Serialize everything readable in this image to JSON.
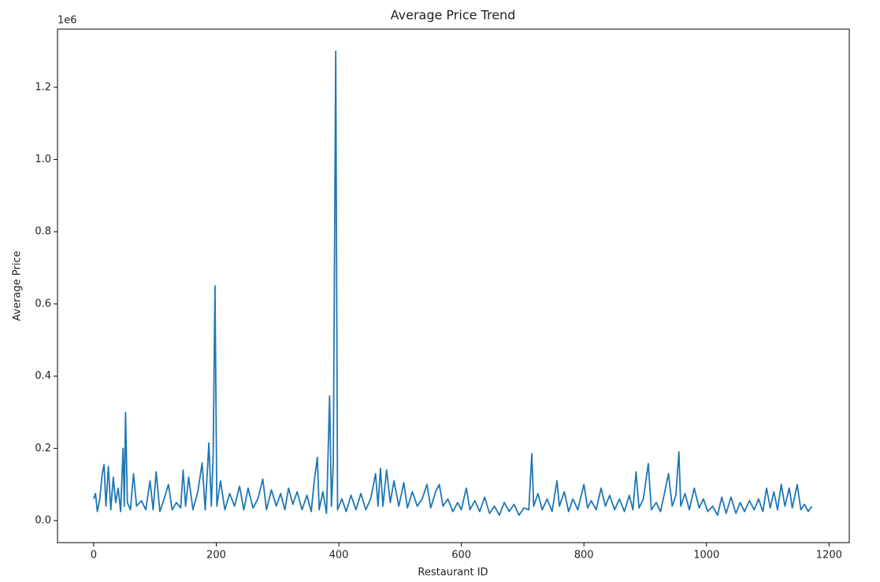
{
  "chart_data": {
    "type": "line",
    "title": "Average Price Trend",
    "x_label": "Restaurant ID",
    "y_label": "Average Price",
    "y_offset_label": "1e6",
    "x": [
      0,
      3,
      6,
      10,
      14,
      17,
      20,
      24,
      28,
      32,
      36,
      40,
      44,
      48,
      50,
      52,
      55,
      60,
      65,
      70,
      78,
      85,
      92,
      97,
      102,
      108,
      115,
      122,
      128,
      135,
      142,
      146,
      150,
      155,
      162,
      170,
      177,
      182,
      188,
      192,
      195,
      198,
      201,
      207,
      214,
      222,
      230,
      238,
      245,
      252,
      260,
      268,
      276,
      282,
      290,
      298,
      305,
      312,
      318,
      325,
      332,
      340,
      348,
      355,
      360,
      365,
      368,
      374,
      380,
      385,
      388,
      391,
      395,
      398,
      405,
      412,
      420,
      428,
      436,
      444,
      452,
      460,
      464,
      468,
      472,
      478,
      484,
      490,
      498,
      506,
      512,
      520,
      528,
      536,
      544,
      550,
      558,
      564,
      570,
      578,
      586,
      594,
      600,
      608,
      614,
      622,
      630,
      638,
      646,
      654,
      662,
      670,
      678,
      686,
      694,
      702,
      710,
      715,
      718,
      725,
      732,
      740,
      748,
      756,
      760,
      768,
      775,
      782,
      790,
      800,
      806,
      812,
      820,
      828,
      835,
      842,
      850,
      858,
      866,
      874,
      880,
      885,
      890,
      897,
      905,
      910,
      918,
      925,
      932,
      938,
      944,
      950,
      955,
      958,
      965,
      972,
      980,
      988,
      995,
      1002,
      1010,
      1018,
      1025,
      1032,
      1040,
      1048,
      1055,
      1062,
      1070,
      1078,
      1085,
      1092,
      1098,
      1104,
      1110,
      1116,
      1122,
      1128,
      1135,
      1140,
      1148,
      1154,
      1160,
      1166,
      1172
    ],
    "series": [
      {
        "name": "Average Price",
        "color": "#1f77b4",
        "values": [
          60000,
          75000,
          25000,
          60000,
          130000,
          155000,
          40000,
          150000,
          30000,
          120000,
          50000,
          90000,
          25000,
          200000,
          40000,
          300000,
          50000,
          30000,
          130000,
          40000,
          55000,
          30000,
          110000,
          30000,
          135000,
          25000,
          60000,
          100000,
          30000,
          50000,
          35000,
          140000,
          40000,
          120000,
          30000,
          80000,
          160000,
          30000,
          215000,
          40000,
          180000,
          650000,
          40000,
          110000,
          30000,
          75000,
          40000,
          95000,
          30000,
          90000,
          35000,
          60000,
          115000,
          30000,
          85000,
          40000,
          75000,
          30000,
          90000,
          45000,
          80000,
          30000,
          70000,
          25000,
          110000,
          175000,
          30000,
          80000,
          20000,
          345000,
          40000,
          155000,
          1300000,
          30000,
          60000,
          25000,
          70000,
          30000,
          75000,
          30000,
          60000,
          130000,
          40000,
          145000,
          40000,
          140000,
          50000,
          110000,
          40000,
          105000,
          35000,
          80000,
          40000,
          60000,
          100000,
          35000,
          80000,
          100000,
          40000,
          60000,
          25000,
          50000,
          30000,
          90000,
          30000,
          55000,
          25000,
          65000,
          20000,
          40000,
          15000,
          50000,
          25000,
          45000,
          15000,
          35000,
          30000,
          185000,
          40000,
          75000,
          30000,
          60000,
          25000,
          110000,
          40000,
          80000,
          25000,
          60000,
          30000,
          100000,
          35000,
          55000,
          30000,
          90000,
          40000,
          70000,
          30000,
          60000,
          25000,
          70000,
          30000,
          135000,
          35000,
          60000,
          158000,
          30000,
          50000,
          25000,
          80000,
          130000,
          40000,
          70000,
          190000,
          40000,
          75000,
          30000,
          90000,
          35000,
          60000,
          25000,
          40000,
          15000,
          65000,
          20000,
          65000,
          20000,
          50000,
          25000,
          55000,
          30000,
          60000,
          25000,
          90000,
          35000,
          80000,
          30000,
          100000,
          40000,
          90000,
          35000,
          100000,
          30000,
          45000,
          25000,
          40000
        ]
      }
    ],
    "xlim": [
      -59,
      1233
    ],
    "xticks": [
      0,
      200,
      400,
      600,
      800,
      1000,
      1200
    ],
    "ylim": [
      -61000,
      1361000
    ],
    "yticks": [
      {
        "value": 0,
        "label": "0.0"
      },
      {
        "value": 200000,
        "label": "0.2"
      },
      {
        "value": 400000,
        "label": "0.4"
      },
      {
        "value": 600000,
        "label": "0.6"
      },
      {
        "value": 800000,
        "label": "0.8"
      },
      {
        "value": 1000000,
        "label": "1.0"
      },
      {
        "value": 1200000,
        "label": "1.2"
      }
    ]
  }
}
